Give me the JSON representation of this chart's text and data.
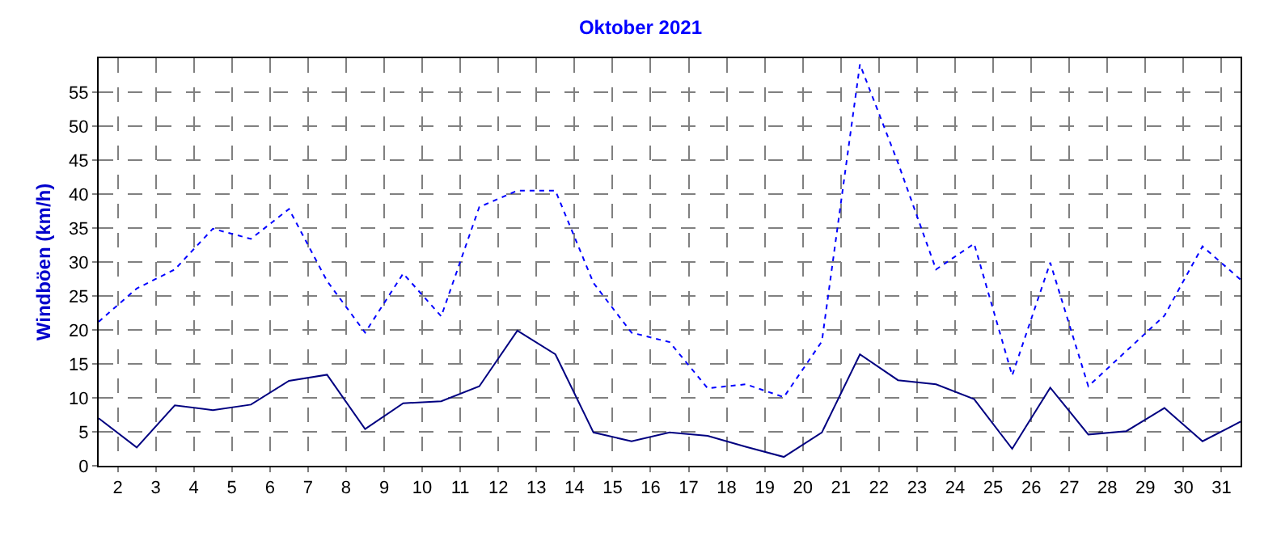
{
  "chart_data": {
    "type": "line",
    "title": "Oktober 2021",
    "ylabel": "Windböen (km/h)",
    "x": [
      1.5,
      2.5,
      3.5,
      4.5,
      5.5,
      6.5,
      7.5,
      8.5,
      9.5,
      10.5,
      11.5,
      12.5,
      13.5,
      14.5,
      15.5,
      16.5,
      17.5,
      18.5,
      19.5,
      20.5,
      21.5,
      22.5,
      23.5,
      24.5,
      25.5,
      26.5,
      27.5,
      28.5,
      29.5,
      30.5,
      31.5
    ],
    "series": [
      {
        "color": "#0000ff",
        "line_style": "dotted",
        "values": [
          21.2,
          26.1,
          28.9,
          34.9,
          33.4,
          37.8,
          27.2,
          19.6,
          28.3,
          22.0,
          38.1,
          40.5,
          40.5,
          26.9,
          19.6,
          18.2,
          11.4,
          12.0,
          10.1,
          18.3,
          59.1,
          44.6,
          28.9,
          32.7,
          13.3,
          29.9,
          11.7,
          16.9,
          22.1,
          32.3,
          27.4
        ]
      },
      {
        "color": "#000080",
        "line_style": "solid",
        "values": [
          7.0,
          2.7,
          8.9,
          8.2,
          9.0,
          12.5,
          13.4,
          5.4,
          9.2,
          9.5,
          11.7,
          19.9,
          16.4,
          4.9,
          3.6,
          4.9,
          4.4,
          2.8,
          1.3,
          4.9,
          16.4,
          12.6,
          12.0,
          9.8,
          2.5,
          11.5,
          4.6,
          5.1,
          8.5,
          3.6,
          6.5
        ]
      }
    ],
    "xlim": [
      1.5,
      31.5
    ],
    "xticks": [
      2,
      3,
      4,
      5,
      6,
      7,
      8,
      9,
      10,
      11,
      12,
      13,
      14,
      15,
      16,
      17,
      18,
      19,
      20,
      21,
      22,
      23,
      24,
      25,
      26,
      27,
      28,
      29,
      30,
      31
    ],
    "ylim": [
      0,
      60
    ],
    "yticks": [
      0,
      5,
      10,
      15,
      20,
      25,
      30,
      35,
      40,
      45,
      50,
      55
    ],
    "grid": true,
    "legend": false
  }
}
